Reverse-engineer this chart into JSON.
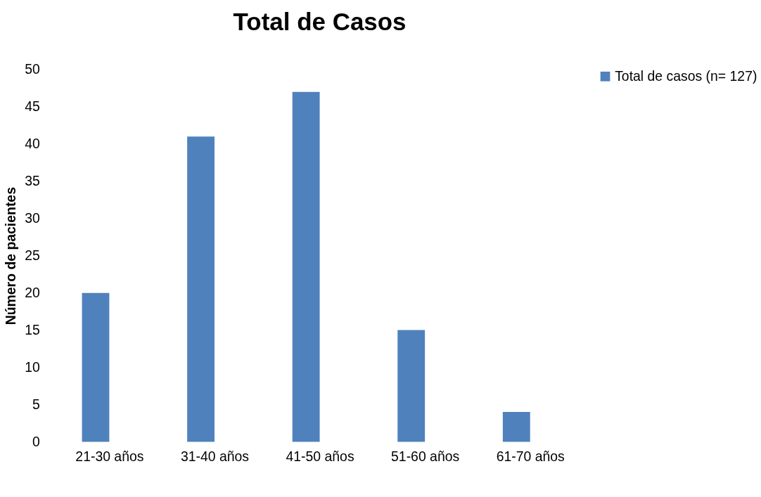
{
  "chart_data": {
    "type": "bar",
    "title": "Total de Casos",
    "ylabel": "Número de pacientes",
    "categories": [
      "21-30 años",
      "31-40 años",
      "41-50 años",
      "51-60 años",
      "61-70 años"
    ],
    "series": [
      {
        "name": "Total de casos (n= 127)",
        "color": "#4f81bd",
        "values": [
          20,
          41,
          47,
          15,
          4
        ]
      }
    ],
    "ylim": [
      0,
      50
    ],
    "yticks": [
      0,
      5,
      10,
      15,
      20,
      25,
      30,
      35,
      40,
      45,
      50
    ],
    "grid": false,
    "legend": "right"
  }
}
